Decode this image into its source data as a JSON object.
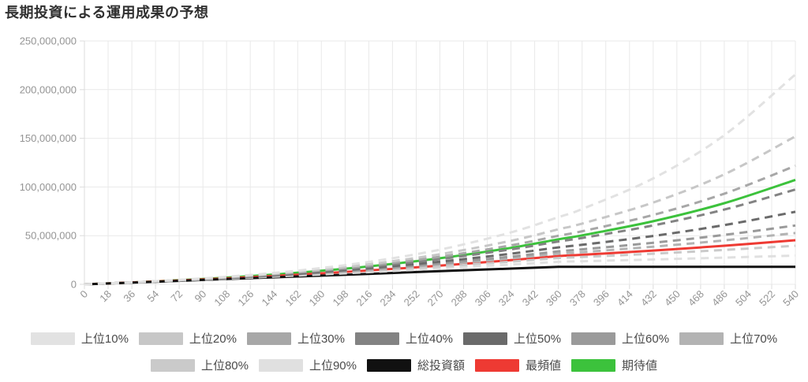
{
  "title": "長期投資による運用成果の予想",
  "colors": {
    "grid": "#e9e9e9",
    "axis": "#dcdcdc",
    "tick_label": "#949494",
    "legend_text": "#4a4a4a",
    "title_text": "#303030",
    "background": "#ffffff"
  },
  "chart_data": {
    "type": "line",
    "title": "長期投資による運用成果の予想",
    "xlabel": "",
    "ylabel": "",
    "x_max": 540,
    "y_max": 250,
    "y_unit": 1000000,
    "unit": "JPY (yen), values stored in millions",
    "grid": true,
    "legend_position": "bottom",
    "x_ticks": [
      0,
      18,
      36,
      54,
      72,
      90,
      108,
      126,
      144,
      162,
      180,
      198,
      216,
      234,
      252,
      270,
      288,
      306,
      324,
      342,
      360,
      378,
      396,
      414,
      432,
      450,
      468,
      486,
      504,
      522,
      540
    ],
    "y_ticks": [
      0,
      50,
      100,
      150,
      200,
      250
    ],
    "x_points": [
      0,
      54,
      108,
      162,
      216,
      270,
      324,
      360,
      378,
      432,
      486,
      540
    ],
    "series": [
      {
        "id": "top10",
        "name": "上位10%",
        "color": "#e2e2e2",
        "dash": true,
        "values": [
          0,
          3.21,
          7.73,
          14.08,
          23.03,
          35.62,
          53.34,
          69.01,
          77.34,
          108.85,
          153.21,
          215.65
        ]
      },
      {
        "id": "top20",
        "name": "上位20%",
        "color": "#c7c7c7",
        "dash": true,
        "values": [
          0,
          3.13,
          7.35,
          13.03,
          20.66,
          30.93,
          44.76,
          56.53,
          62.41,
          83.97,
          112.97,
          152.0
        ]
      },
      {
        "id": "top30",
        "name": "上位30%",
        "color": "#a7a7a7",
        "dash": true,
        "values": [
          0,
          3.09,
          7.12,
          12.4,
          19.29,
          28.31,
          40.08,
          49.88,
          54.54,
          71.28,
          93.16,
          121.76
        ]
      },
      {
        "id": "top40",
        "name": "上位40%",
        "color": "#838383",
        "dash": true,
        "values": [
          0,
          3.04,
          6.9,
          11.8,
          18.01,
          25.9,
          35.91,
          44.03,
          47.67,
          60.49,
          76.75,
          97.39
        ]
      },
      {
        "id": "top50",
        "name": "上位50%",
        "color": "#6a6a6a",
        "dash": true,
        "values": [
          0,
          2.99,
          6.64,
          11.12,
          16.59,
          23.3,
          31.5,
          37.97,
          40.61,
          49.71,
          60.85,
          74.48
        ]
      },
      {
        "id": "top60",
        "name": "上位60%",
        "color": "#9a9a9a",
        "dash": true,
        "values": [
          0,
          2.94,
          6.45,
          10.61,
          15.57,
          21.46,
          28.48,
          33.87,
          35.89,
          42.69,
          50.79,
          60.41
        ]
      },
      {
        "id": "top70",
        "name": "上位70%",
        "color": "#b3b3b3",
        "dash": true,
        "values": [
          0,
          2.92,
          6.32,
          10.29,
          14.93,
          20.35,
          26.67,
          31.46,
          33.13,
          38.67,
          45.14,
          52.7
        ]
      },
      {
        "id": "top80",
        "name": "上位80%",
        "color": "#cacaca",
        "dash": true,
        "values": [
          0,
          2.86,
          6.06,
          9.66,
          13.7,
          18.22,
          23.3,
          27.02,
          28.07,
          31.49,
          35.33,
          39.63
        ]
      },
      {
        "id": "top90",
        "name": "上位90%",
        "color": "#e0e0e0",
        "dash": true,
        "values": [
          0,
          2.8,
          5.81,
          9.05,
          12.53,
          16.28,
          20.31,
          23.16,
          23.73,
          25.52,
          27.45,
          29.53
        ]
      },
      {
        "id": "total",
        "name": "総投資額",
        "color": "#111111",
        "dash": false,
        "straight": true,
        "values": [
          0,
          2.7,
          5.4,
          8.1,
          10.8,
          13.5,
          16.2,
          18,
          18,
          18,
          18,
          18
        ]
      },
      {
        "id": "mode",
        "name": "最頻値",
        "color": "#ee3a33",
        "dash": false,
        "values": [
          0,
          2.89,
          6.18,
          9.95,
          14.26,
          19.19,
          24.82,
          29.02,
          30.34,
          34.68,
          39.65,
          45.32
        ]
      },
      {
        "id": "expected",
        "name": "期待値",
        "color": "#3cc23c",
        "dash": false,
        "values": [
          0,
          3.04,
          6.95,
          11.98,
          18.45,
          26.77,
          37.49,
          46.29,
          50.35,
          64.79,
          83.36,
          107.27
        ]
      }
    ],
    "legend_rows": [
      7,
      5
    ]
  }
}
